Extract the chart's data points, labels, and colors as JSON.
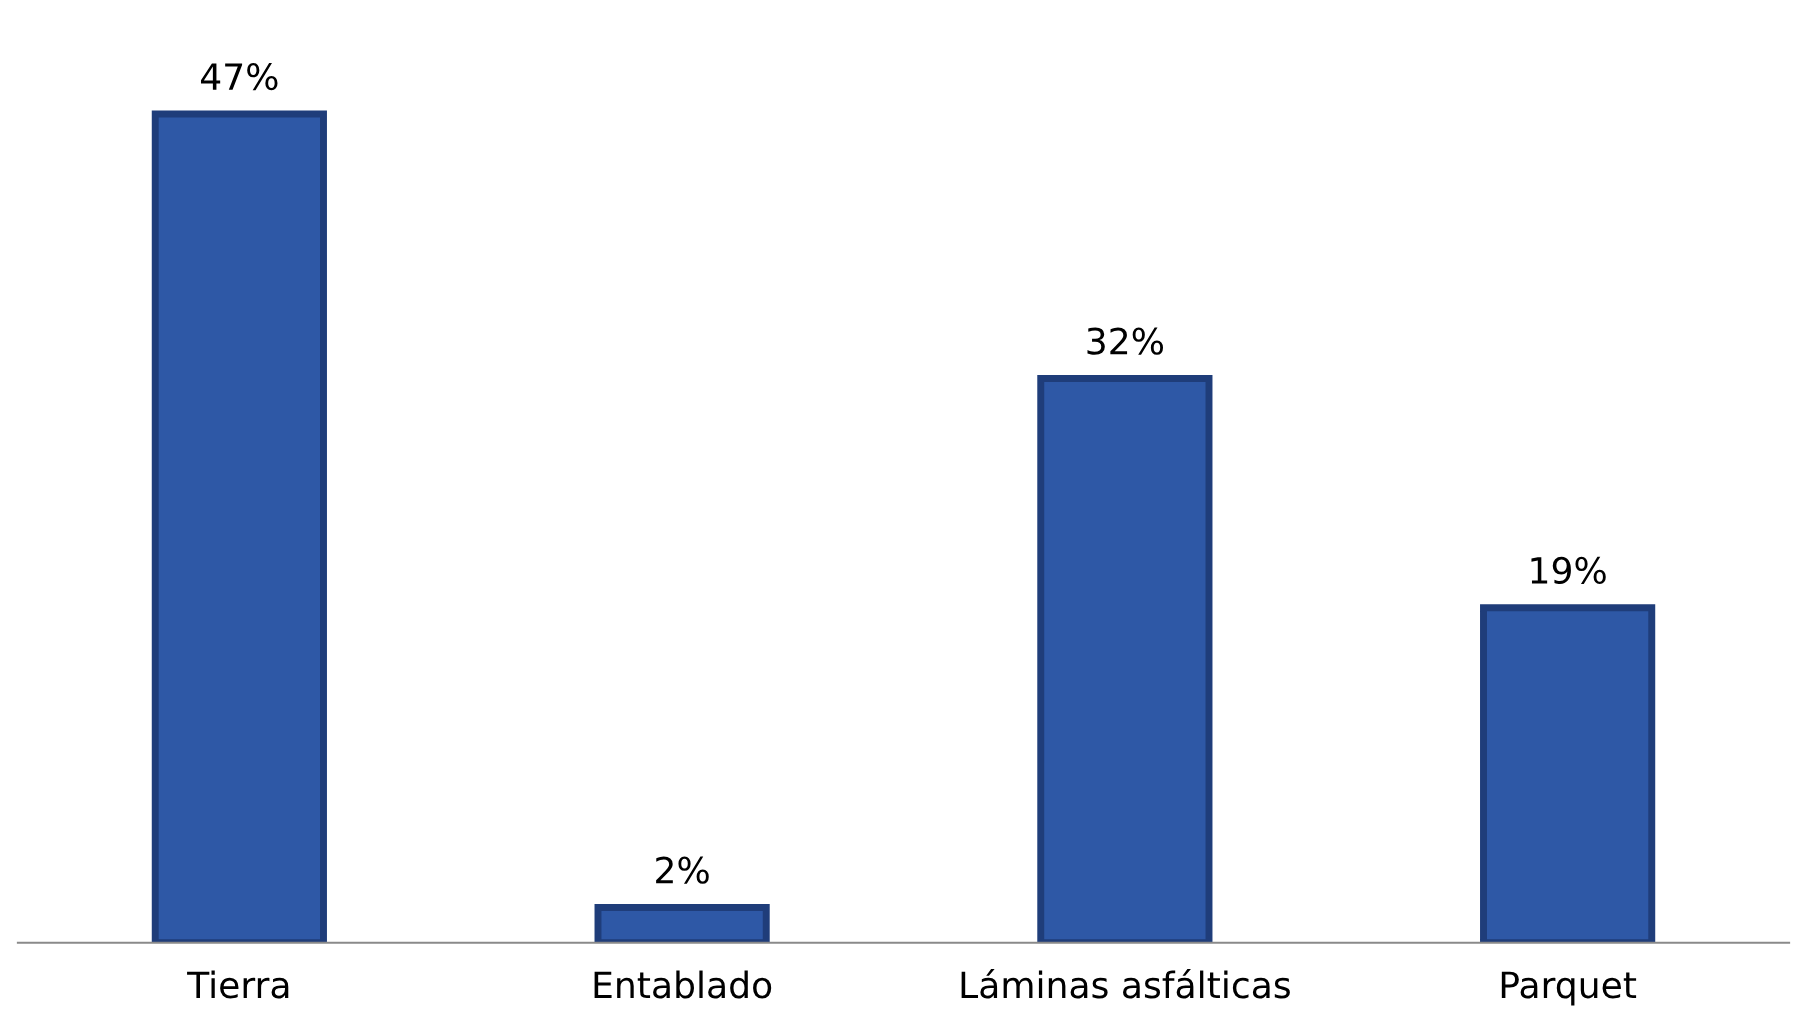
{
  "chart_data": {
    "type": "bar",
    "categories": [
      "Tierra",
      "Entablado",
      "Láminas asfálticas",
      "Parquet"
    ],
    "values": [
      47,
      2,
      32,
      19
    ],
    "value_labels": [
      "47%",
      "2%",
      "32%",
      "19%"
    ],
    "color": "#2e58a6",
    "tick_labels": "x",
    "grid": false
  }
}
